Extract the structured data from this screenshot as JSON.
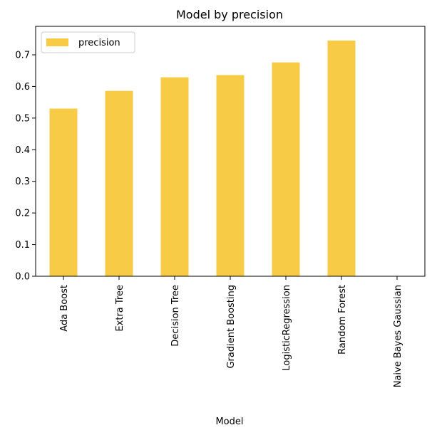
{
  "chart_data": {
    "type": "bar",
    "title": "Model by precision",
    "xlabel": "Model",
    "ylabel": "",
    "categories": [
      "Ada Boost",
      "Extra Tree",
      "Decision Tree",
      "Gradient Boosting",
      "LogisticRegression",
      "Random Forest",
      "Naive Bayes Gaussian"
    ],
    "series": [
      {
        "name": "precision",
        "values": [
          0.53,
          0.586,
          0.629,
          0.636,
          0.676,
          0.745,
          0.0
        ]
      }
    ],
    "ylim": [
      0,
      0.79
    ],
    "yticks": [
      "0.0",
      "0.1",
      "0.2",
      "0.3",
      "0.4",
      "0.5",
      "0.6",
      "0.7"
    ],
    "grid": false,
    "legend_position": "upper-left",
    "bar_color": "#f7cb46"
  }
}
